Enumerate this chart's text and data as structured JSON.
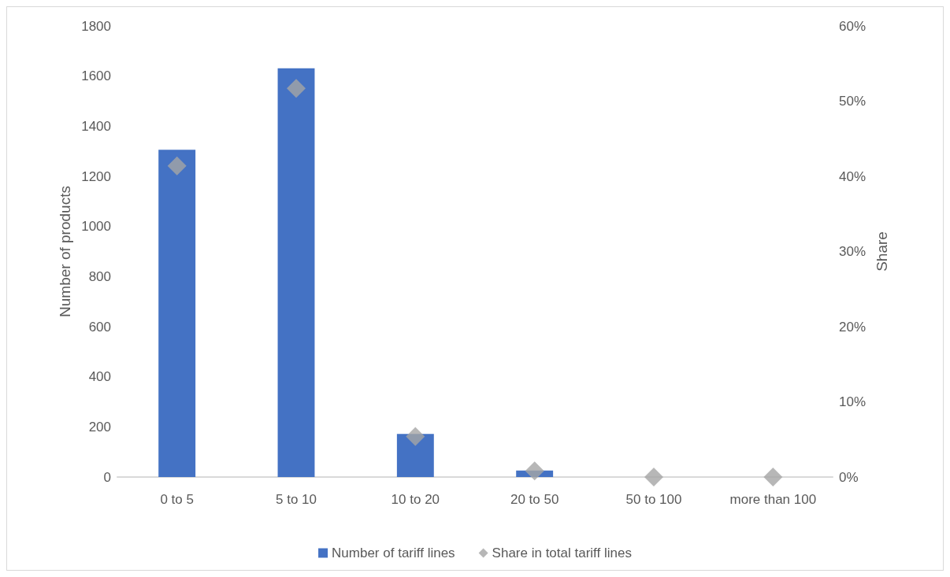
{
  "chart_data": {
    "type": "bar",
    "categories": [
      "0 to 5",
      "5 to 10",
      "10 to 20",
      "20 to 50",
      "50 to 100",
      "more than 100"
    ],
    "series": [
      {
        "name": "Number of tariff lines",
        "color": "#4472c4",
        "values": [
          1306,
          1631,
          172,
          26,
          0,
          0
        ]
      },
      {
        "name": "Share in total tariff lines",
        "type": "scatter",
        "axis": "y2",
        "color": "#a5a5a5",
        "marker": "diamond",
        "values": [
          41.4,
          51.7,
          5.4,
          0.8,
          0,
          0
        ]
      }
    ],
    "ylabel": "Number of products",
    "y2label": "Share",
    "ylim": [
      0,
      1800
    ],
    "yticks": [
      0,
      200,
      400,
      600,
      800,
      1000,
      1200,
      1400,
      1600,
      1800
    ],
    "y2lim": [
      0,
      60
    ],
    "y2ticks": [
      {
        "value": 0,
        "label": "0%"
      },
      {
        "value": 10,
        "label": "10%"
      },
      {
        "value": 20,
        "label": "20%"
      },
      {
        "value": 30,
        "label": "30%"
      },
      {
        "value": 40,
        "label": "40%"
      },
      {
        "value": 50,
        "label": "50%"
      },
      {
        "value": 60,
        "label": "60%"
      }
    ],
    "grid": false,
    "legend": "bottom"
  }
}
